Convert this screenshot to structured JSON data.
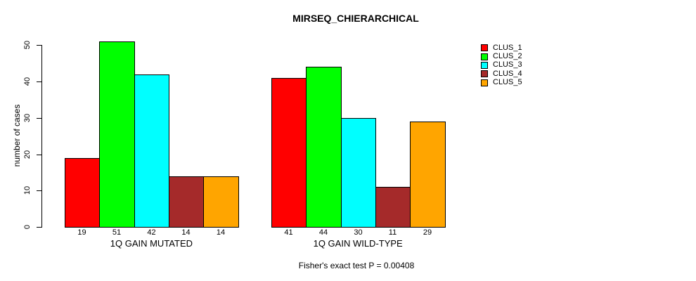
{
  "chart_data": {
    "type": "bar",
    "title": "MIRSEQ_CHIERARCHICAL",
    "xlabel": "",
    "ylabel": "number of cases",
    "ylim": [
      0,
      50
    ],
    "yticks": [
      0,
      10,
      20,
      30,
      40,
      50
    ],
    "grid": false,
    "legend_position": "right",
    "categories": [
      "1Q GAIN MUTATED",
      "1Q GAIN WILD-TYPE"
    ],
    "series": [
      {
        "name": "CLUS_1",
        "color": "#FF0000",
        "values": [
          19,
          41
        ]
      },
      {
        "name": "CLUS_2",
        "color": "#00FF00",
        "values": [
          51,
          44
        ]
      },
      {
        "name": "CLUS_3",
        "color": "#00FFFF",
        "values": [
          42,
          30
        ]
      },
      {
        "name": "CLUS_4",
        "color": "#A52A2A",
        "values": [
          14,
          11
        ]
      },
      {
        "name": "CLUS_5",
        "color": "#FFA500",
        "values": [
          14,
          29
        ]
      }
    ],
    "value_labels_shown": true,
    "annotation": "Fisher's exact test P = 0.00408"
  }
}
